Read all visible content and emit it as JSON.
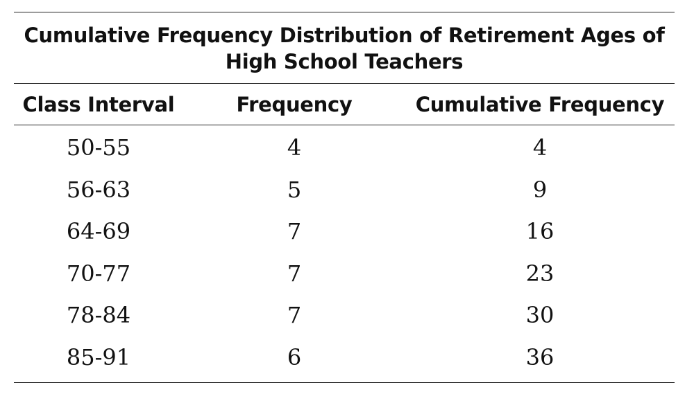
{
  "title": "Cumulative Frequency Distribution of Retirement Ages of High School Teachers",
  "chart_data": {
    "type": "table",
    "title": "Cumulative Frequency Distribution of Retirement Ages of High School Teachers",
    "columns": [
      "Class Interval",
      "Frequency",
      "Cumulative Frequency"
    ],
    "rows": [
      [
        "50-55",
        "4",
        "4"
      ],
      [
        "56-63",
        "5",
        "9"
      ],
      [
        "64-69",
        "7",
        "16"
      ],
      [
        "70-77",
        "7",
        "23"
      ],
      [
        "78-84",
        "7",
        "30"
      ],
      [
        "85-91",
        "6",
        "36"
      ]
    ]
  }
}
